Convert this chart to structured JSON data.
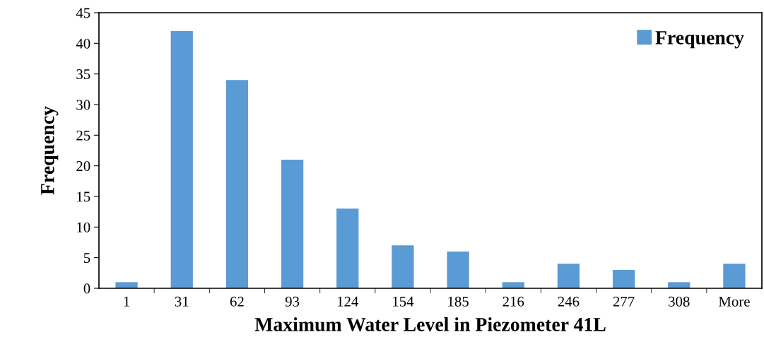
{
  "chart_data": {
    "type": "bar",
    "xlabel": "Maximum Water Level in Piezometer 41L",
    "ylabel": "Frequency",
    "categories": [
      "1",
      "31",
      "62",
      "93",
      "124",
      "154",
      "185",
      "216",
      "246",
      "277",
      "308",
      "More"
    ],
    "series": [
      {
        "name": "Frequency",
        "color": "#5b9bd5",
        "values": [
          1,
          42,
          34,
          21,
          13,
          7,
          6,
          1,
          4,
          3,
          1,
          4
        ]
      }
    ],
    "ylim": [
      0,
      45
    ],
    "yticks": [
      0,
      5,
      10,
      15,
      20,
      25,
      30,
      35,
      40,
      45
    ],
    "grid": false,
    "legend": "top right"
  }
}
